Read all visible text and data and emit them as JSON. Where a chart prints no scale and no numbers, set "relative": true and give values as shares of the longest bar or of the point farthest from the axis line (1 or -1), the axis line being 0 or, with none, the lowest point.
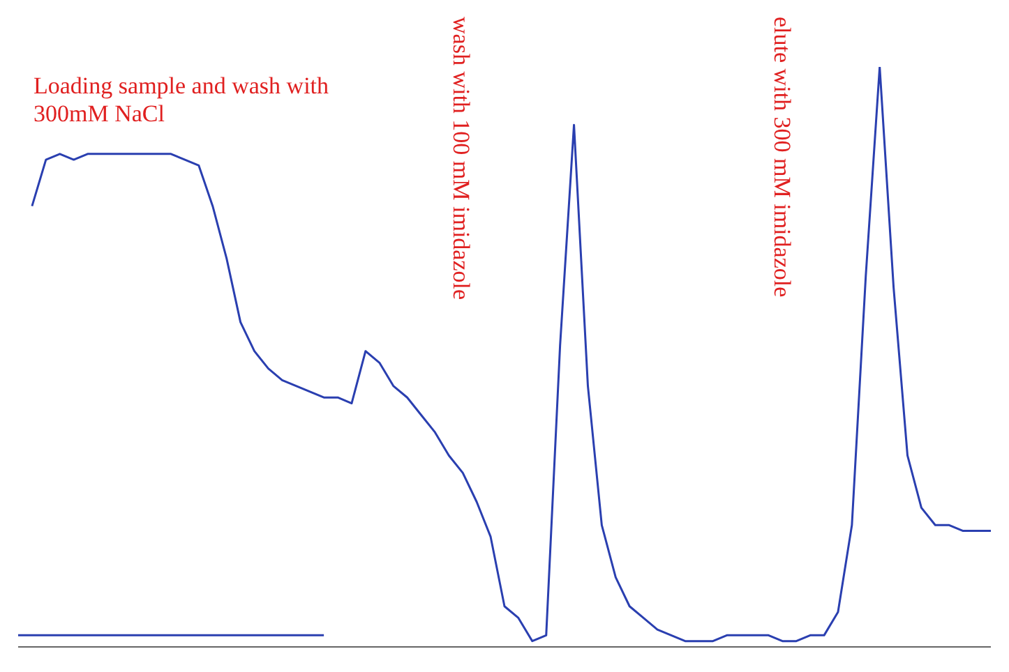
{
  "chart_data": {
    "type": "line",
    "relative": true,
    "categories": [
      null,
      null,
      null,
      null,
      null,
      null,
      null,
      null,
      null,
      null,
      null,
      null,
      null,
      null,
      null,
      null,
      null,
      null,
      null,
      null,
      null,
      null,
      null,
      null,
      null,
      null,
      null,
      null,
      null,
      null,
      null,
      null,
      null,
      null,
      null,
      null,
      null,
      null,
      null,
      null,
      null,
      null,
      null,
      null,
      null,
      null,
      null,
      null,
      null,
      null,
      null,
      null,
      null,
      null,
      null,
      null,
      null,
      null,
      null,
      null,
      null,
      null,
      null,
      null,
      null,
      null,
      null,
      null,
      null,
      null,
      null
    ],
    "series": [
      {
        "color": "#2a3fb0",
        "values": [
          null,
          0.76,
          0.84,
          0.85,
          0.84,
          0.85,
          0.85,
          0.85,
          0.85,
          0.85,
          0.85,
          0.85,
          0.84,
          0.83,
          0.76,
          0.67,
          0.56,
          0.51,
          0.48,
          0.46,
          0.45,
          0.44,
          0.43,
          0.43,
          0.42,
          0.51,
          0.49,
          0.45,
          0.43,
          0.4,
          0.37,
          0.33,
          0.3,
          0.25,
          0.19,
          0.07,
          0.05,
          0.01,
          0.02,
          0.52,
          0.9,
          0.45,
          0.21,
          0.12,
          0.07,
          0.05,
          0.03,
          0.02,
          0.01,
          0.01,
          0.01,
          0.02,
          0.02,
          0.02,
          0.02,
          0.01,
          0.01,
          0.02,
          0.02,
          0.06,
          0.21,
          0.64,
          1.0,
          0.62,
          0.33,
          0.24,
          0.21,
          0.21,
          0.2,
          0.2,
          0.2
        ]
      },
      {
        "color": "#2a3fb0",
        "values": [
          0.02,
          0.02,
          0.02,
          0.02,
          0.02,
          0.02,
          0.02,
          0.02,
          0.02,
          0.02,
          0.02,
          0.02,
          0.02,
          0.02,
          0.02,
          0.02,
          0.02,
          0.02,
          0.02,
          0.02,
          0.02,
          0.02,
          0.02,
          null,
          null,
          null,
          null,
          null,
          null,
          null,
          null,
          null,
          null,
          null,
          null,
          null,
          null,
          null,
          null,
          null,
          null,
          null,
          null,
          null,
          null,
          null,
          null,
          null,
          null,
          null,
          null,
          null,
          null,
          null,
          null,
          null,
          null,
          null,
          null,
          null,
          null,
          null,
          null,
          null,
          null,
          null,
          null,
          null,
          null,
          null,
          null
        ]
      }
    ],
    "annotations": [
      "Loading sample and wash with 300mM NaCl",
      "wash with 100 mM imidazole",
      "elute with 300 mM imidazole"
    ],
    "line_style": "solid",
    "marker": "none"
  }
}
